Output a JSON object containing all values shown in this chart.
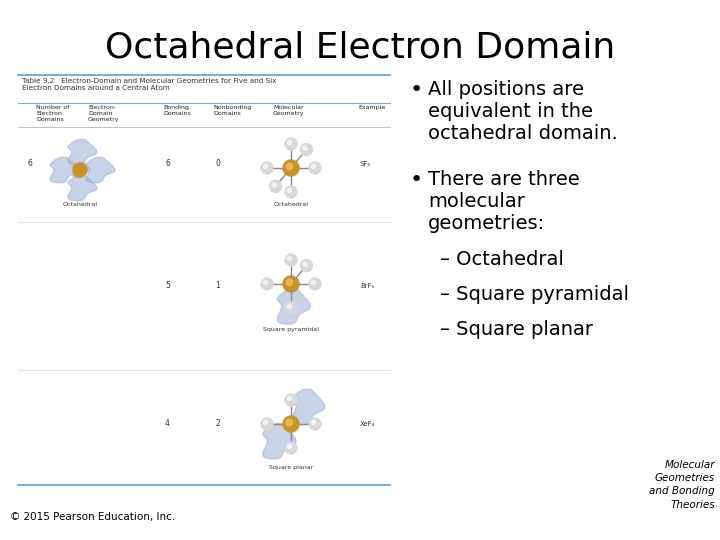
{
  "title": "Octahedral Electron Domain",
  "title_fontsize": 26,
  "title_fontweight": "normal",
  "background_color": "#ffffff",
  "bullet1_line1": "All positions are",
  "bullet1_line2": "equivalent in the",
  "bullet1_line3": "octahedral domain.",
  "bullet2_line1": "There are three",
  "bullet2_line2": "molecular",
  "bullet2_line3": "geometries:",
  "sub1": "– Octahedral",
  "sub2": "– Square pyramidal",
  "sub3": "– Square planar",
  "footer_left": "© 2015 Pearson Education, Inc.",
  "footer_right": "Molecular\nGeometries\nand Bonding\nTheories",
  "bullet_fontsize": 14,
  "sub_fontsize": 14,
  "footer_fontsize": 7.5,
  "table_border_color": "#7bafd4",
  "table_header_line_color": "#7bafd4",
  "text_color": "#000000",
  "table_title": "Table 9.2   Electron-Domain and Molecular Geometries for Five and Six\nElectron Domains around a Central Atom",
  "col_headers": [
    "Number of\nElectron\nDomains",
    "Electron-\nDomain\nGeometry",
    "Bonding\nDomains",
    "Nonbonding\nDomains",
    "Molecular\nGeometry",
    "Example"
  ],
  "row1_nums": [
    "6",
    "6",
    "0"
  ],
  "row1_geom": "Octahedral",
  "row1_example": "SF₆",
  "row2_nums": [
    "5",
    "1"
  ],
  "row2_geom": "Square pyramidal",
  "row2_example": "BrF₅",
  "row3_nums": [
    "4",
    "2"
  ],
  "row3_geom": "Square planar",
  "row3_example": "XeF₄",
  "blob_color": "#9dafd4",
  "arm_color": "#d8d8d8",
  "center_color": "#c8922a"
}
